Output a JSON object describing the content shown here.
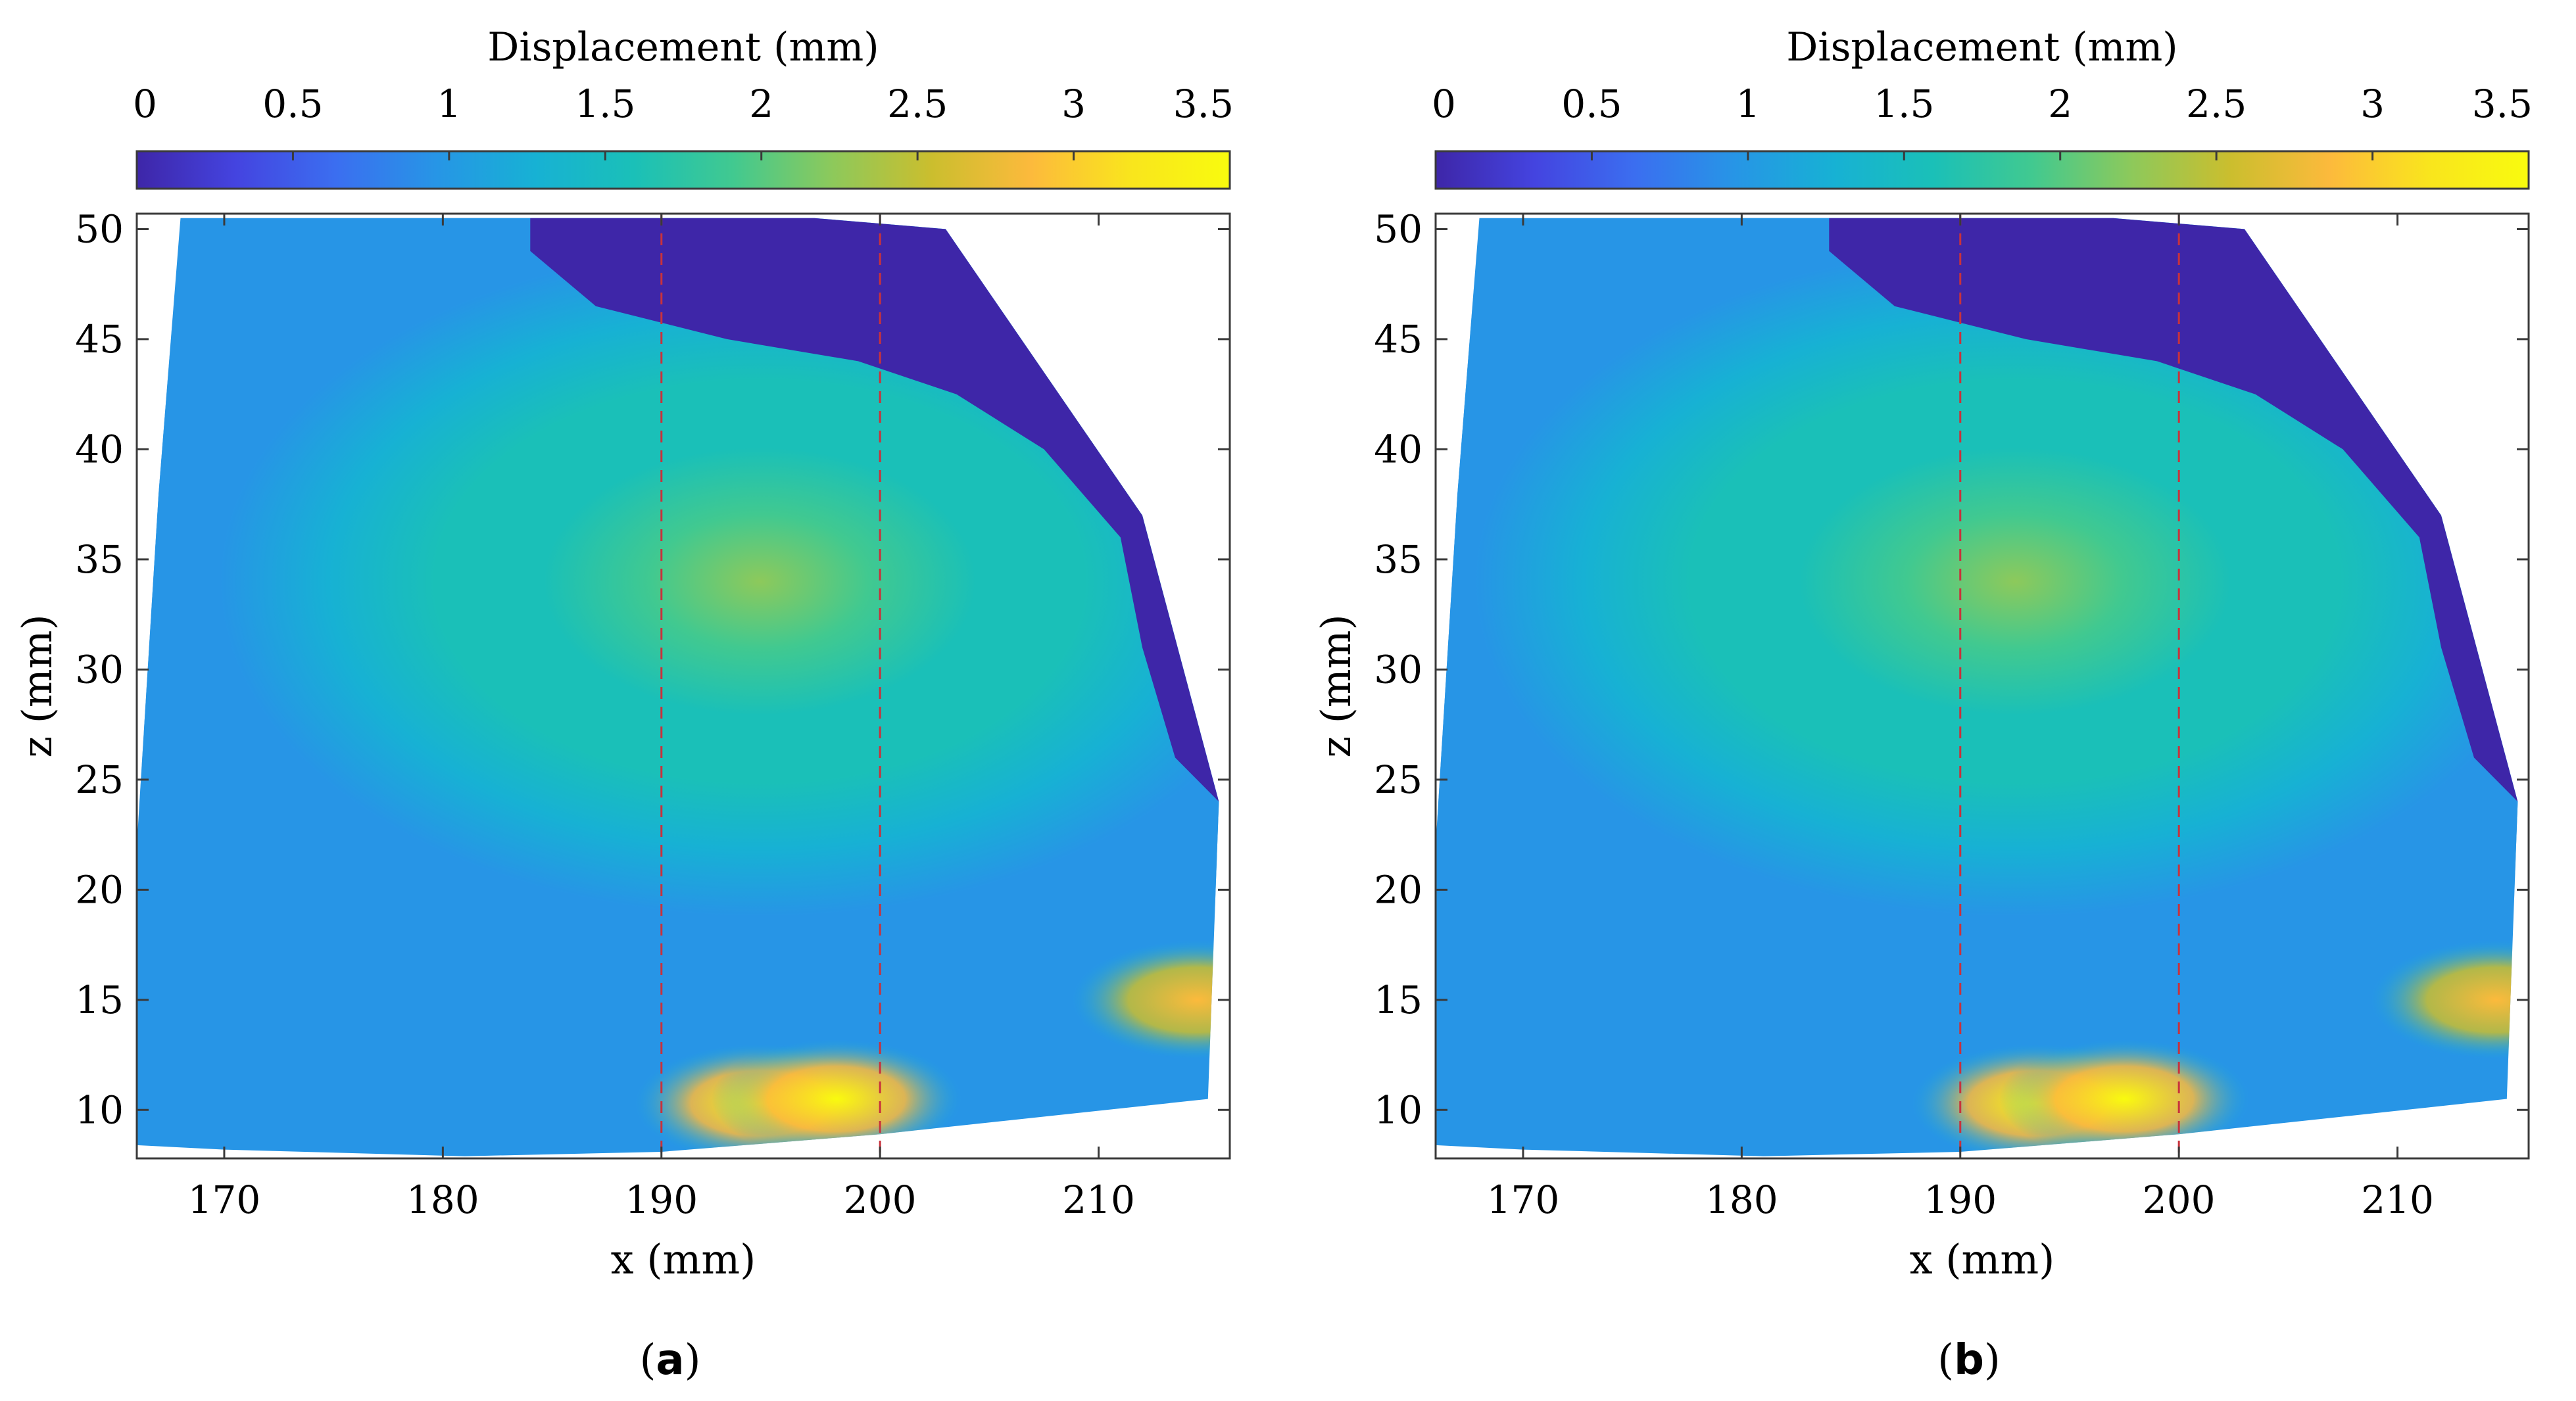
{
  "colors": {
    "colormap": [
      "#3e26a8",
      "#4444e0",
      "#3b6ef0",
      "#2795e6",
      "#17b1d4",
      "#1ac0b8",
      "#41c990",
      "#8dc95b",
      "#cbbe2e",
      "#fcba3c",
      "#f9e51d",
      "#f9fb0e"
    ],
    "cut_line": "#c8323c",
    "frame": "#3a3a3a"
  },
  "chart_data": [
    {
      "type": "heatmap",
      "panel": "a",
      "caption": "(a)",
      "caption_letter": "a",
      "colorbar": {
        "label": "Displacement (mm)",
        "range": [
          0,
          3.5
        ],
        "ticks": [
          0,
          0.5,
          1,
          1.5,
          2,
          2.5,
          3,
          3.5
        ],
        "tick_labels": [
          "0",
          "0.5",
          "1",
          "1.5",
          "2",
          "2.5",
          "3",
          "3.5"
        ],
        "location": "top"
      },
      "xlabel": "x (mm)",
      "ylabel": "z (mm)",
      "xlim": [
        166,
        216
      ],
      "ylim": [
        7.8,
        50.7
      ],
      "xticks": [
        170,
        180,
        190,
        200,
        210
      ],
      "yticks": [
        10,
        15,
        20,
        25,
        30,
        35,
        40,
        45,
        50
      ],
      "grid": false,
      "vertical_lines": [
        190,
        200
      ],
      "field": {
        "peak_center": [
          194.5,
          34
        ],
        "peak_value": 2.1,
        "boundary": [
          [
            168,
            50.5
          ],
          [
            183,
            50.5
          ],
          [
            197,
            50.5
          ],
          [
            203,
            50
          ],
          [
            212,
            37
          ],
          [
            215.5,
            24
          ],
          [
            215,
            10.5
          ],
          [
            200,
            8.9
          ],
          [
            190,
            8.1
          ],
          [
            181,
            7.9
          ],
          [
            170,
            8.2
          ],
          [
            166,
            8.4
          ],
          [
            166,
            22
          ],
          [
            167,
            38
          ]
        ],
        "low_zone": [
          [
            184,
            50.5
          ],
          [
            197,
            50.5
          ],
          [
            203,
            50
          ],
          [
            212,
            37
          ],
          [
            215.5,
            24
          ],
          [
            213.5,
            26
          ],
          [
            212,
            31
          ],
          [
            211,
            36
          ],
          [
            207.5,
            40
          ],
          [
            203.5,
            42.5
          ],
          [
            199,
            44
          ],
          [
            193,
            45
          ],
          [
            187,
            46.5
          ],
          [
            184,
            49
          ]
        ],
        "hot_spots": [
          {
            "x": 194.5,
            "z": 10.3,
            "value": 3.5
          },
          {
            "x": 198,
            "z": 10.5,
            "value": 3.5
          },
          {
            "x": 214.5,
            "z": 15,
            "value": 3.0
          }
        ]
      }
    },
    {
      "type": "heatmap",
      "panel": "b",
      "caption": "(b)",
      "caption_letter": "b",
      "colorbar": {
        "label": "Displacement (mm)",
        "range": [
          0,
          3.5
        ],
        "ticks": [
          0,
          0.5,
          1,
          1.5,
          2,
          2.5,
          3,
          3.5
        ],
        "tick_labels": [
          "0",
          "0.5",
          "1",
          "1.5",
          "2",
          "2.5",
          "3",
          "3.5"
        ],
        "location": "top"
      },
      "xlabel": "x (mm)",
      "ylabel": "z (mm)",
      "xlim": [
        166,
        216
      ],
      "ylim": [
        7.8,
        50.7
      ],
      "xticks": [
        170,
        180,
        190,
        200,
        210
      ],
      "yticks": [
        10,
        15,
        20,
        25,
        30,
        35,
        40,
        45,
        50
      ],
      "grid": false,
      "vertical_lines": [
        190,
        200
      ],
      "field": {
        "peak_center": [
          192.5,
          34
        ],
        "peak_value": 2.1,
        "boundary": [
          [
            168,
            50.5
          ],
          [
            183,
            50.5
          ],
          [
            197,
            50.5
          ],
          [
            203,
            50
          ],
          [
            212,
            37
          ],
          [
            215.5,
            24
          ],
          [
            215,
            10.5
          ],
          [
            200,
            8.9
          ],
          [
            190,
            8.1
          ],
          [
            181,
            7.9
          ],
          [
            170,
            8.2
          ],
          [
            166,
            8.4
          ],
          [
            166,
            22
          ],
          [
            167,
            38
          ]
        ],
        "low_zone": [
          [
            184,
            50.5
          ],
          [
            197,
            50.5
          ],
          [
            203,
            50
          ],
          [
            212,
            37
          ],
          [
            215.5,
            24
          ],
          [
            213.5,
            26
          ],
          [
            212,
            31
          ],
          [
            211,
            36
          ],
          [
            207.5,
            40
          ],
          [
            203.5,
            42.5
          ],
          [
            199,
            44
          ],
          [
            193,
            45
          ],
          [
            187,
            46.5
          ],
          [
            184,
            49
          ]
        ],
        "hot_spots": [
          {
            "x": 193.5,
            "z": 10.3,
            "value": 3.5
          },
          {
            "x": 197.5,
            "z": 10.5,
            "value": 3.5
          },
          {
            "x": 214.5,
            "z": 15,
            "value": 3.0
          }
        ]
      }
    }
  ]
}
